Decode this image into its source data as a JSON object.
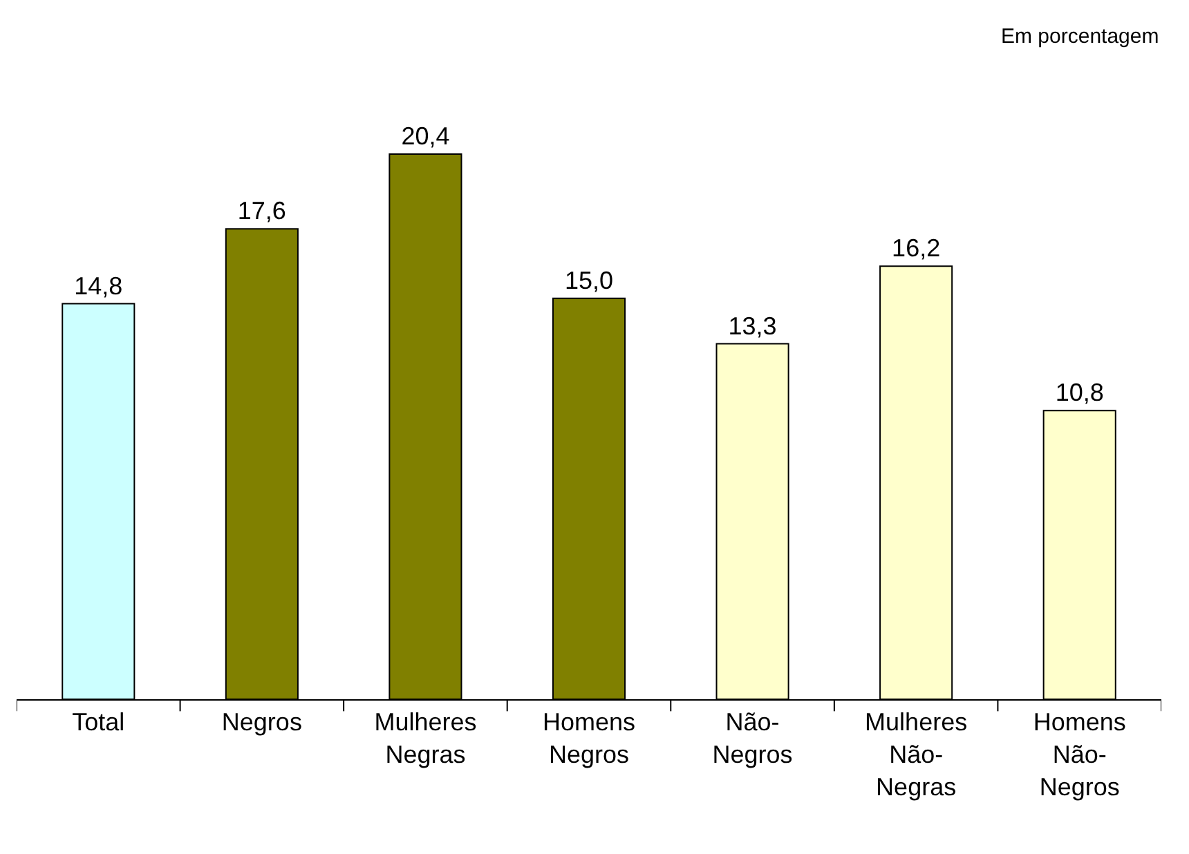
{
  "chart_data": {
    "type": "bar",
    "categories": [
      "Total",
      "Negros",
      "Mulheres Negras",
      "Homens Negros",
      "Não-Negros",
      "Mulheres Não-Negras",
      "Homens Não-Negros"
    ],
    "values": [
      14.8,
      17.6,
      20.4,
      15.0,
      13.3,
      16.2,
      10.8
    ],
    "colors": [
      "#ccffff",
      "#808000",
      "#808000",
      "#808000",
      "#ffffcc",
      "#ffffcc",
      "#ffffcc"
    ],
    "value_labels": [
      "14,8",
      "17,6",
      "20,4",
      "15,0",
      "13,3",
      "16,2",
      "10,8"
    ],
    "annotations": [
      "Em porcentagem"
    ]
  }
}
